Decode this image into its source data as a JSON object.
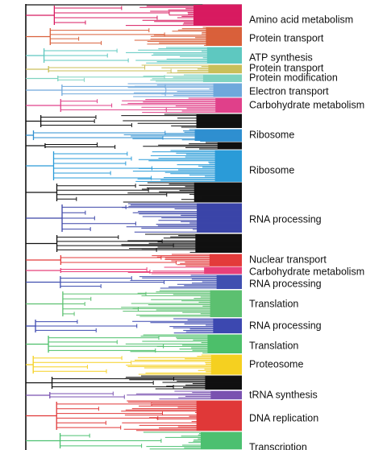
{
  "labels": [
    "Amino acid metabolism",
    "Protein transport",
    "ATP synthesis",
    "Protein transport",
    "Protein modification",
    "Electron transport",
    "Carbohydrate metabolism",
    "Ribosome",
    "Ribosome",
    "RNA processing",
    "Nuclear transport",
    "Carbohydrate metabolism",
    "RNA processing",
    "Translation",
    "RNA processing",
    "Translation",
    "Proteosome",
    "tRNA synthesis",
    "DNA replication",
    "Transcription"
  ]
}
